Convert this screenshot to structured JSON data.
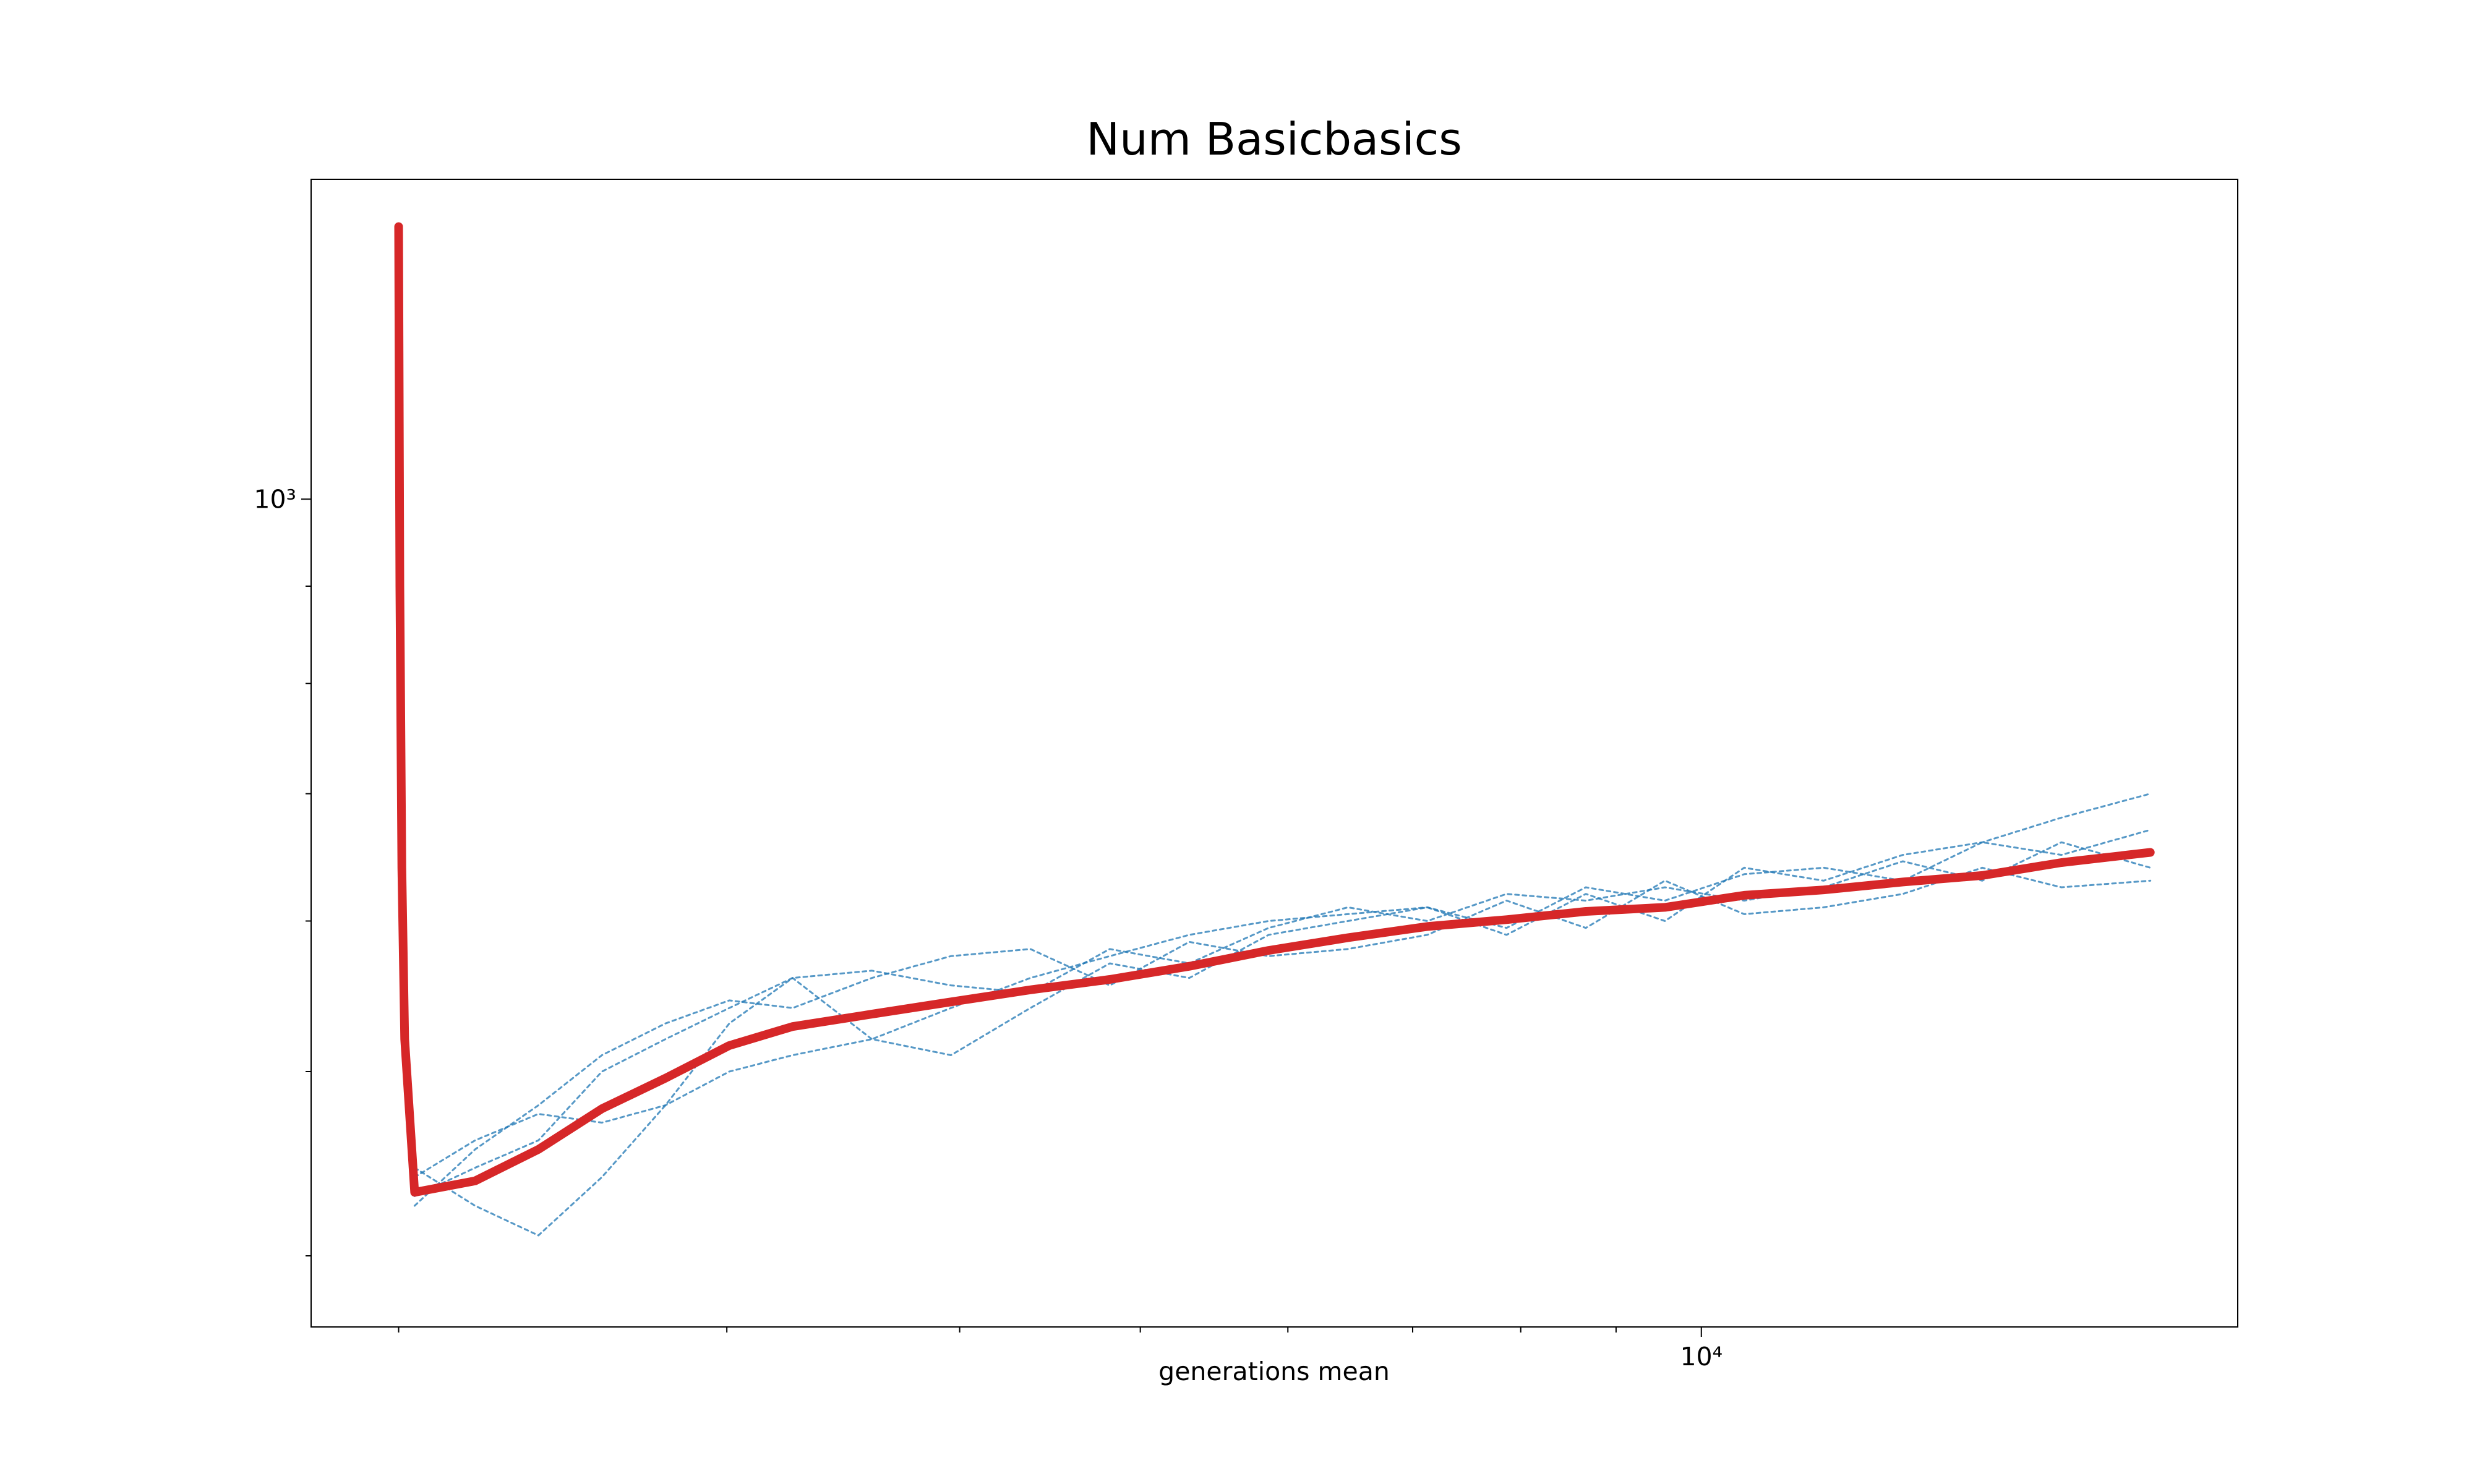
{
  "chart_data": {
    "type": "line",
    "title": "Num Basicbasics",
    "xlabel": "generations mean",
    "xscale": "log",
    "yscale": "log",
    "xlim": [
      1795,
      19400
    ],
    "ylim": [
      367,
      1473
    ],
    "xticks": [
      {
        "value": 10000,
        "label": "10⁴"
      }
    ],
    "yticks": [
      {
        "value": 1000,
        "label": "10³"
      }
    ],
    "xminorticks": [
      2000,
      3000,
      4000,
      5000,
      6000,
      7000,
      8000,
      9000
    ],
    "yminorticks": [
      400,
      500,
      600,
      700,
      800,
      900
    ],
    "x": [
      2000,
      2003,
      2008,
      2015,
      2040,
      2198,
      2377,
      2571,
      2781,
      3009,
      3254,
      3589,
      3957,
      4365,
      4815,
      5312,
      5859,
      6462,
      7128,
      7861,
      8670,
      9560,
      10544,
      11630,
      12827,
      14148,
      15603,
      17415
    ],
    "series": [
      {
        "color": "#1f77b4",
        "style": "dashed",
        "values": [
          null,
          null,
          null,
          null,
          445,
          425,
          410,
          440,
          480,
          530,
          560,
          520,
          510,
          540,
          570,
          560,
          590,
          600,
          610,
          590,
          620,
          600,
          640,
          630,
          650,
          660,
          680,
          700
        ]
      },
      {
        "color": "#1f77b4",
        "style": "dashed",
        "values": [
          null,
          null,
          null,
          null,
          425,
          455,
          480,
          510,
          530,
          545,
          540,
          560,
          575,
          580,
          555,
          585,
          575,
          580,
          590,
          615,
          595,
          630,
          605,
          610,
          620,
          640,
          625,
          630
        ]
      },
      {
        "color": "#1f77b4",
        "style": "dashed",
        "values": [
          null,
          null,
          null,
          null,
          440,
          460,
          475,
          470,
          480,
          500,
          510,
          520,
          540,
          560,
          575,
          590,
          600,
          605,
          610,
          595,
          625,
          615,
          635,
          640,
          630,
          660,
          650,
          670
        ]
      },
      {
        "color": "#1f77b4",
        "style": "dashed",
        "values": [
          null,
          null,
          null,
          null,
          430,
          445,
          460,
          500,
          520,
          540,
          560,
          565,
          555,
          550,
          580,
          570,
          595,
          610,
          600,
          620,
          615,
          625,
          615,
          625,
          645,
          630,
          660,
          640
        ]
      },
      {
        "color": "#d62728",
        "style": "solid",
        "values": [
          1391,
          900,
          640,
          520,
          432,
          438,
          455,
          478,
          496,
          516,
          528,
          536,
          544,
          552,
          559,
          568,
          579,
          588,
          596,
          601,
          607,
          610,
          619,
          623,
          629,
          634,
          644,
          652
        ]
      }
    ]
  }
}
